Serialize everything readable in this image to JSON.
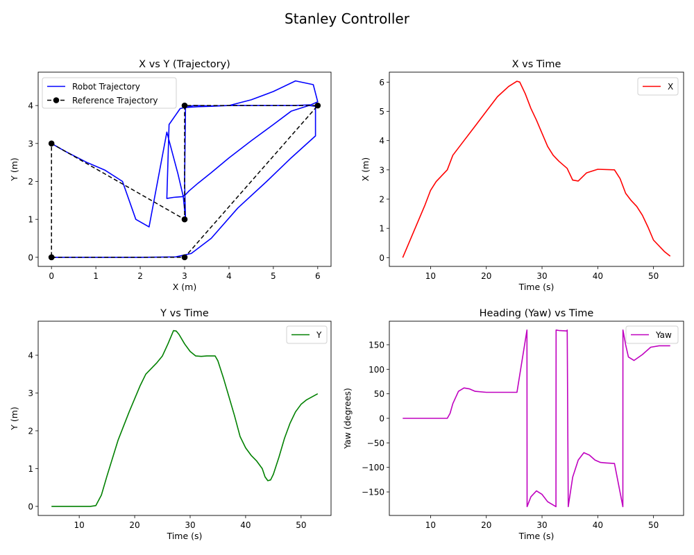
{
  "figure": {
    "suptitle": "Stanley Controller"
  },
  "chart_data": [
    {
      "id": "trajectory",
      "type": "line",
      "title": "X vs Y (Trajectory)",
      "xlabel": "X (m)",
      "ylabel": "Y (m)",
      "xlim": [
        -0.3,
        6.3
      ],
      "ylim": [
        -0.24,
        4.88
      ],
      "xticks": [
        0,
        1,
        2,
        3,
        4,
        5,
        6
      ],
      "yticks": [
        0,
        1,
        2,
        3,
        4
      ],
      "legend": "upper-left",
      "series": [
        {
          "name": "Robot Trajectory",
          "color": "#0000ff",
          "style": "solid",
          "x": [
            0,
            1.0,
            2.0,
            2.8,
            3.15,
            3.6,
            4.2,
            4.85,
            5.4,
            5.95,
            5.95,
            5.8,
            5.4,
            5.0,
            4.5,
            4.0,
            3.6,
            3.3,
            3.1,
            3.02,
            2.95,
            2.75,
            2.6,
            2.65,
            2.9,
            3.2,
            3.6,
            4.0,
            4.5,
            5.0,
            5.5,
            5.9,
            6.0,
            5.85,
            5.5,
            5.0,
            4.5,
            4.0,
            3.6,
            3.3,
            3.02,
            3.0,
            3.02,
            2.97,
            2.85,
            2.6,
            2.2,
            1.9,
            1.6,
            1.2,
            0.8,
            0.3,
            0
          ],
          "y": [
            0,
            0,
            0,
            0.01,
            0.1,
            0.5,
            1.3,
            2.0,
            2.62,
            3.2,
            3.98,
            4.0,
            3.85,
            3.5,
            3.07,
            2.62,
            2.23,
            1.95,
            1.75,
            1.65,
            1.6,
            1.58,
            1.55,
            3.5,
            3.92,
            4.0,
            3.99,
            4.0,
            4.15,
            4.37,
            4.65,
            4.55,
            4.1,
            4.02,
            4.0,
            4.0,
            4.0,
            4.0,
            3.98,
            3.97,
            3.95,
            2.0,
            1.0,
            1.6,
            2.2,
            3.3,
            0.8,
            1.0,
            2.0,
            2.3,
            2.5,
            2.8,
            3.0
          ]
        },
        {
          "name": "Reference Trajectory",
          "color": "#000000",
          "style": "dashed",
          "marker": "circle",
          "x": [
            0,
            3,
            6,
            3,
            3,
            0,
            0
          ],
          "y": [
            0,
            0,
            4,
            4,
            1,
            3,
            0
          ]
        }
      ]
    },
    {
      "id": "x_time",
      "type": "line",
      "title": "X vs Time",
      "xlabel": "Time (s)",
      "ylabel": "X (m)",
      "xlim": [
        2.6,
        55.4
      ],
      "ylim": [
        -0.3,
        6.34
      ],
      "xticks": [
        10,
        20,
        30,
        40,
        50
      ],
      "yticks": [
        0,
        1,
        2,
        3,
        4,
        5,
        6
      ],
      "legend": "upper-right",
      "series": [
        {
          "name": "X",
          "color": "#ff0000",
          "t": [
            5,
            7,
            9,
            10,
            11,
            13,
            14,
            16,
            18,
            20,
            22,
            24,
            25.5,
            26,
            27,
            28,
            29,
            30,
            31,
            32,
            33,
            34.5,
            35.5,
            36.5,
            38,
            40,
            43,
            44,
            45,
            46,
            47,
            48,
            49,
            50,
            52,
            53
          ],
          "values": [
            0,
            0.9,
            1.8,
            2.3,
            2.6,
            3.0,
            3.5,
            4.0,
            4.5,
            5.0,
            5.5,
            5.85,
            6.03,
            6.0,
            5.6,
            5.1,
            4.7,
            4.25,
            3.8,
            3.5,
            3.3,
            3.05,
            2.65,
            2.62,
            2.9,
            3.02,
            3.0,
            2.7,
            2.2,
            1.95,
            1.75,
            1.45,
            1.05,
            0.6,
            0.2,
            0.05
          ]
        }
      ]
    },
    {
      "id": "y_time",
      "type": "line",
      "title": "Y vs Time",
      "xlabel": "Time (s)",
      "ylabel": "Y (m)",
      "xlim": [
        2.6,
        55.4
      ],
      "ylim": [
        -0.24,
        4.9
      ],
      "xticks": [
        10,
        20,
        30,
        40,
        50
      ],
      "yticks": [
        0,
        1,
        2,
        3,
        4
      ],
      "legend": "upper-right",
      "series": [
        {
          "name": "Y",
          "color": "#008000",
          "t": [
            5,
            8,
            10,
            12,
            13,
            14,
            15,
            17,
            19,
            21,
            22,
            24,
            25,
            26,
            27,
            27.5,
            28,
            29,
            30,
            31,
            32,
            33,
            34.5,
            35,
            36,
            37,
            38,
            39,
            40,
            41,
            42,
            43,
            43.5,
            44,
            44.5,
            45,
            46,
            47,
            48,
            49,
            50,
            51,
            52,
            53
          ],
          "values": [
            0,
            0,
            0,
            0,
            0.02,
            0.3,
            0.8,
            1.75,
            2.5,
            3.2,
            3.5,
            3.8,
            3.98,
            4.3,
            4.65,
            4.64,
            4.55,
            4.3,
            4.1,
            3.98,
            3.97,
            3.98,
            3.98,
            3.85,
            3.4,
            2.9,
            2.4,
            1.85,
            1.55,
            1.35,
            1.2,
            1.0,
            0.78,
            0.68,
            0.7,
            0.85,
            1.3,
            1.8,
            2.2,
            2.5,
            2.7,
            2.82,
            2.9,
            2.98
          ]
        }
      ]
    },
    {
      "id": "yaw_time",
      "type": "line",
      "title": "Heading (Yaw) vs Time",
      "xlabel": "Time (s)",
      "ylabel": "Yaw (degrees)",
      "xlim": [
        2.6,
        55.4
      ],
      "ylim": [
        -198,
        198
      ],
      "xticks": [
        10,
        20,
        30,
        40,
        50
      ],
      "yticks": [
        -150,
        -100,
        -50,
        0,
        50,
        100,
        150
      ],
      "legend": "upper-right",
      "series": [
        {
          "name": "Yaw",
          "color": "#bf00bf",
          "t": [
            5,
            10,
            13,
            13.5,
            14,
            15,
            16,
            17,
            18,
            20,
            22,
            24,
            25.5,
            27.3,
            27.32,
            28,
            29,
            30,
            31,
            32.5,
            32.52,
            33,
            34.5,
            34.52,
            34.7,
            35.5,
            36.5,
            37.5,
            38.5,
            39.5,
            40.5,
            41.5,
            43,
            44.5,
            44.52,
            45,
            45.5,
            46.5,
            48,
            49.5,
            51,
            53
          ],
          "values": [
            0,
            0,
            0,
            10,
            30,
            55,
            62,
            60,
            55,
            53,
            53,
            53,
            53,
            180,
            -180,
            -160,
            -148,
            -155,
            -170,
            -180,
            180,
            179,
            178,
            180,
            -180,
            -120,
            -85,
            -70,
            -75,
            -85,
            -90,
            -91,
            -92,
            -180,
            180,
            150,
            125,
            118,
            130,
            145,
            148,
            148
          ]
        }
      ]
    }
  ]
}
